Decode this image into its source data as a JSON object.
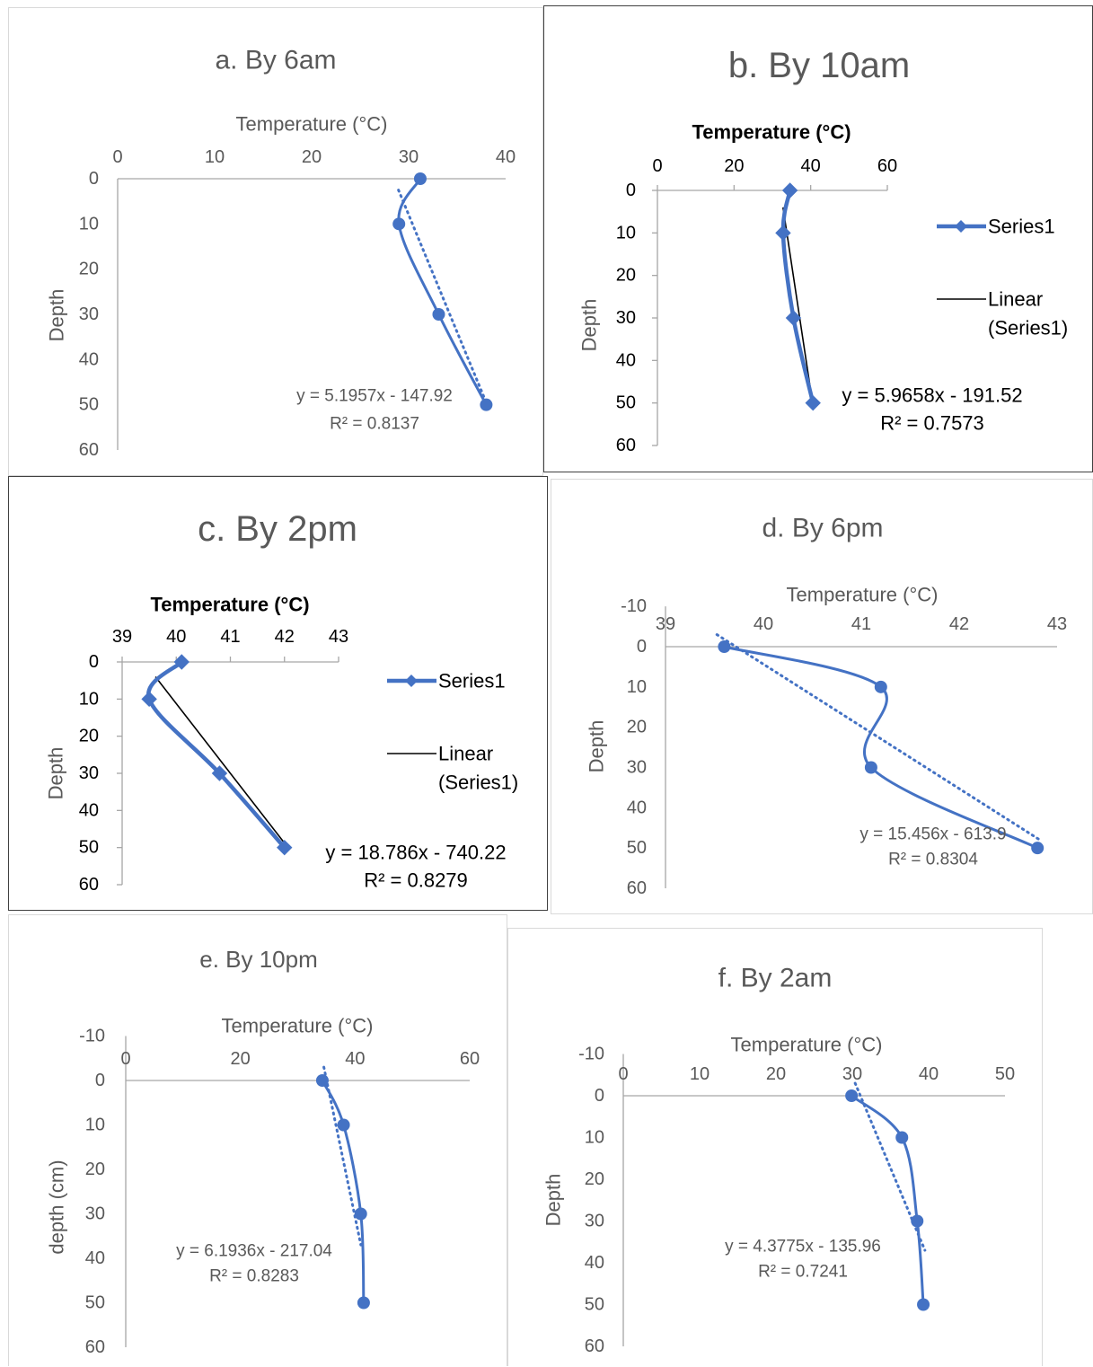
{
  "chart_data": [
    {
      "id": "a",
      "type": "line",
      "title": "a. By 6am",
      "xlabel": "Temperature (°C)",
      "ylabel": "Depth",
      "x_ticks": [
        "0",
        "10",
        "20",
        "30",
        "40"
      ],
      "y_ticks": [
        "0",
        "10",
        "20",
        "30",
        "40",
        "50",
        "60"
      ],
      "xlim": [
        0,
        40
      ],
      "ylim": [
        0,
        60
      ],
      "y_reversed": true,
      "marker": "circle",
      "series": [
        {
          "temperature": [
            31.2,
            29.0,
            33.1,
            38.0
          ],
          "depth": [
            0,
            10,
            30,
            50
          ]
        }
      ],
      "trendline": {
        "slope": 5.1957,
        "intercept": -147.92,
        "style": "dotted",
        "equation": "y = 5.1957x - 147.92",
        "r2": "R² = 0.8137"
      },
      "grid": false,
      "legend": null
    },
    {
      "id": "b",
      "type": "line",
      "title": "b. By 10am",
      "xlabel": "Temperature (°C)",
      "ylabel": "Depth",
      "x_ticks": [
        "0",
        "20",
        "40",
        "60"
      ],
      "y_ticks": [
        "0",
        "10",
        "20",
        "30",
        "40",
        "50",
        "60"
      ],
      "xlim": [
        0,
        60
      ],
      "ylim": [
        0,
        60
      ],
      "y_reversed": true,
      "marker": "diamond",
      "series": [
        {
          "name": "Series1",
          "temperature": [
            34.6,
            32.8,
            35.5,
            40.6
          ],
          "depth": [
            0,
            10,
            30,
            50
          ]
        }
      ],
      "trendline": {
        "slope": 5.9658,
        "intercept": -191.52,
        "style": "solid",
        "name": "Linear (Series1)",
        "equation": "y = 5.9658x - 191.52",
        "r2": "R² = 0.7573"
      },
      "grid": false,
      "legend": {
        "position": "right",
        "entries": [
          "Series1",
          "Linear",
          "(Series1)"
        ]
      }
    },
    {
      "id": "c",
      "type": "line",
      "title": "c. By 2pm",
      "xlabel": "Temperature (°C)",
      "ylabel": "Depth",
      "x_ticks": [
        "39",
        "40",
        "41",
        "42",
        "43"
      ],
      "y_ticks": [
        "0",
        "10",
        "20",
        "30",
        "40",
        "50",
        "60"
      ],
      "xlim": [
        39,
        43
      ],
      "ylim": [
        0,
        60
      ],
      "y_reversed": true,
      "marker": "diamond",
      "series": [
        {
          "name": "Series1",
          "temperature": [
            40.1,
            39.5,
            40.8,
            42.0
          ],
          "depth": [
            0,
            10,
            30,
            50
          ]
        }
      ],
      "trendline": {
        "slope": 18.786,
        "intercept": -740.22,
        "style": "solid",
        "name": "Linear (Series1)",
        "equation": "y = 18.786x - 740.22",
        "r2": "R² = 0.8279"
      },
      "grid": false,
      "legend": {
        "position": "right",
        "entries": [
          "Series1",
          "Linear",
          "(Series1)"
        ]
      }
    },
    {
      "id": "d",
      "type": "line",
      "title": "d. By 6pm",
      "xlabel": "Temperature (°C)",
      "ylabel": "Depth",
      "x_ticks": [
        "39",
        "40",
        "41",
        "42",
        "43"
      ],
      "y_ticks": [
        "-10",
        "0",
        "10",
        "20",
        "30",
        "40",
        "50",
        "60"
      ],
      "xlim": [
        39,
        43
      ],
      "ylim": [
        -10,
        60
      ],
      "y_reversed": true,
      "marker": "circle",
      "series": [
        {
          "temperature": [
            39.6,
            41.2,
            41.1,
            42.8
          ],
          "depth": [
            0,
            10,
            30,
            50
          ]
        }
      ],
      "trendline": {
        "slope": 15.456,
        "intercept": -613.9,
        "style": "dotted",
        "equation": "y = 15.456x - 613.9",
        "r2": "R² = 0.8304"
      },
      "grid": false,
      "legend": null
    },
    {
      "id": "e",
      "type": "line",
      "title": "e. By 10pm",
      "xlabel": "Temperature (°C)",
      "ylabel": "depth (cm)",
      "x_ticks": [
        "0",
        "20",
        "40",
        "60"
      ],
      "y_ticks": [
        "-10",
        "0",
        "10",
        "20",
        "30",
        "40",
        "50",
        "60"
      ],
      "xlim": [
        0,
        60
      ],
      "ylim": [
        -10,
        60
      ],
      "y_reversed": true,
      "marker": "circle",
      "series": [
        {
          "temperature": [
            34.3,
            38.0,
            41.0,
            41.5
          ],
          "depth": [
            0,
            10,
            30,
            50
          ]
        }
      ],
      "trendline": {
        "slope": 6.1936,
        "intercept": -217.04,
        "style": "dotted",
        "equation": "y = 6.1936x - 217.04",
        "r2": "R² = 0.8283"
      },
      "grid": false,
      "legend": null
    },
    {
      "id": "f",
      "type": "line",
      "title": "f. By 2am",
      "xlabel": "Temperature (°C)",
      "ylabel": "Depth",
      "x_ticks": [
        "0",
        "10",
        "20",
        "30",
        "40",
        "50"
      ],
      "y_ticks": [
        "-10",
        "0",
        "10",
        "20",
        "30",
        "40",
        "50",
        "60"
      ],
      "xlim": [
        0,
        50
      ],
      "ylim": [
        -10,
        60
      ],
      "y_reversed": true,
      "marker": "circle",
      "series": [
        {
          "temperature": [
            29.9,
            36.5,
            38.5,
            39.3
          ],
          "depth": [
            0,
            10,
            30,
            50
          ]
        }
      ],
      "trendline": {
        "slope": 4.3775,
        "intercept": -135.96,
        "style": "dotted",
        "equation": "y = 4.3775x - 135.96",
        "r2": "R² = 0.7241"
      },
      "grid": false,
      "legend": null
    }
  ],
  "colors": {
    "series": "#4472c4",
    "axis": "#a6a6a6",
    "text": "#595959",
    "trend_solid": "#000000",
    "panel_border": "#d9d9d9",
    "panel_border_dark": "#404040"
  }
}
